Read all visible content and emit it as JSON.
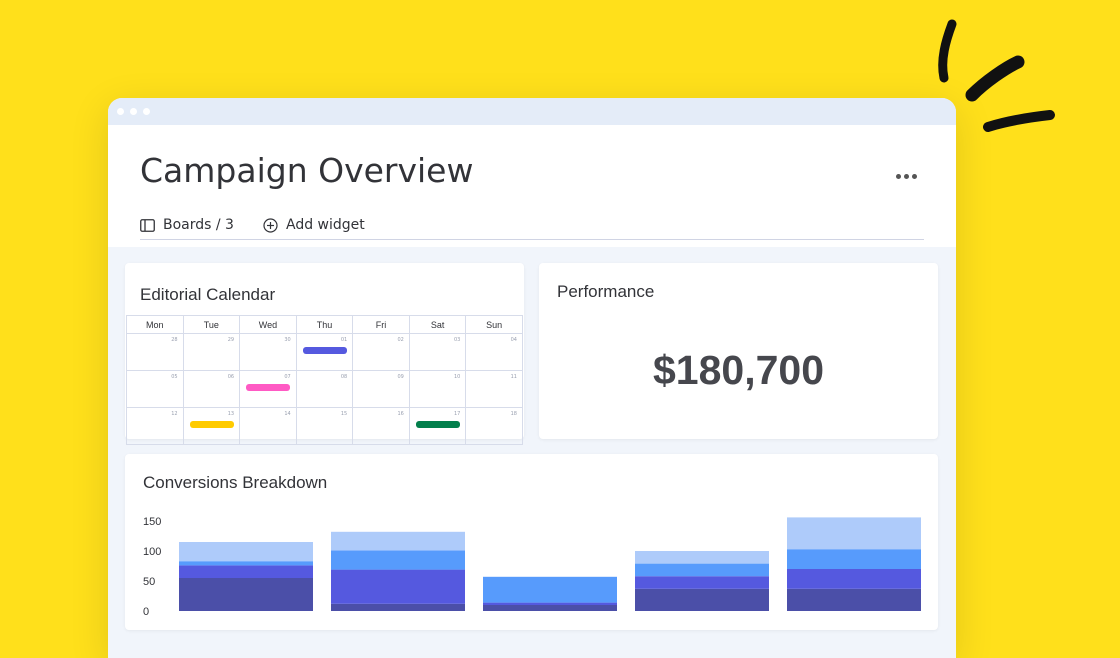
{
  "header": {
    "title": "Campaign Overview",
    "boards_label": "Boards / 3",
    "add_widget_label": "Add widget"
  },
  "calendar": {
    "title": "Editorial Calendar",
    "days": [
      "Mon",
      "Tue",
      "Wed",
      "Thu",
      "Fri",
      "Sat",
      "Sun"
    ],
    "weeks": [
      [
        "28",
        "29",
        "30",
        "01",
        "02",
        "03",
        "04"
      ],
      [
        "05",
        "06",
        "07",
        "08",
        "09",
        "10",
        "11"
      ],
      [
        "12",
        "13",
        "14",
        "15",
        "16",
        "17",
        "18"
      ]
    ],
    "events": [
      {
        "week": 0,
        "day": 3,
        "color": "#5559df"
      },
      {
        "week": 1,
        "day": 2,
        "color": "#ff5ac4"
      },
      {
        "week": 2,
        "day": 1,
        "color": "#ffcb00"
      },
      {
        "week": 2,
        "day": 5,
        "color": "#037f4c"
      }
    ]
  },
  "performance": {
    "title": "Performance",
    "value": "$180,700"
  },
  "chart_data": {
    "type": "bar",
    "title": "Conversions Breakdown",
    "yticks": [
      "150",
      "100",
      "50",
      "0"
    ],
    "ylim": [
      0,
      160
    ],
    "stacked": true,
    "categories": [
      "",
      "",
      "",
      "",
      ""
    ],
    "series": [
      {
        "color": "#4b4fa8",
        "values": [
          55,
          12,
          10,
          37,
          37
        ]
      },
      {
        "color": "#5559df",
        "values": [
          21,
          57,
          4,
          21,
          33
        ]
      },
      {
        "color": "#579bfc",
        "values": [
          7,
          32,
          43,
          21,
          33
        ]
      },
      {
        "color": "#aecbfa",
        "values": [
          32,
          31,
          0,
          21,
          53
        ]
      }
    ]
  },
  "colors": {
    "background": "#ffe01b",
    "window": "#f1f5fb"
  }
}
